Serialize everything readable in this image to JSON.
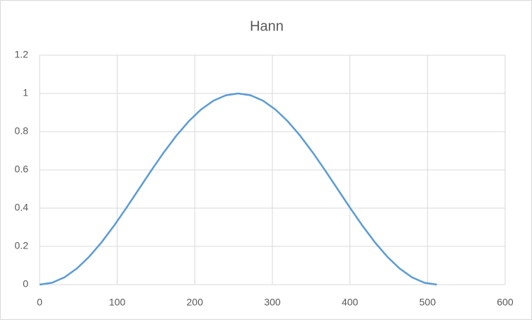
{
  "chart_data": {
    "type": "line",
    "title": "Hann",
    "x": [
      0,
      16,
      32,
      48,
      64,
      80,
      96,
      112,
      128,
      144,
      160,
      176,
      192,
      208,
      224,
      240,
      256,
      272,
      288,
      304,
      320,
      336,
      352,
      368,
      384,
      400,
      416,
      432,
      448,
      464,
      480,
      496,
      512
    ],
    "series": [
      {
        "name": "Hann",
        "color": "#5b9bd5",
        "values": [
          0,
          0.0096,
          0.0381,
          0.0843,
          0.1464,
          0.2222,
          0.3087,
          0.4025,
          0.5,
          0.5975,
          0.6913,
          0.7778,
          0.8536,
          0.9157,
          0.9619,
          0.9904,
          1,
          0.9904,
          0.9619,
          0.9157,
          0.8536,
          0.7778,
          0.6913,
          0.5975,
          0.5,
          0.4025,
          0.3087,
          0.2222,
          0.1464,
          0.0843,
          0.0381,
          0.0096,
          0
        ]
      }
    ],
    "xlim": [
      0,
      600
    ],
    "xticks": [
      0,
      100,
      200,
      300,
      400,
      500,
      600
    ],
    "ylim": [
      0,
      1.2
    ],
    "yticks": [
      0,
      0.2,
      0.4,
      0.6,
      0.8,
      1,
      1.2
    ],
    "grid": true
  }
}
